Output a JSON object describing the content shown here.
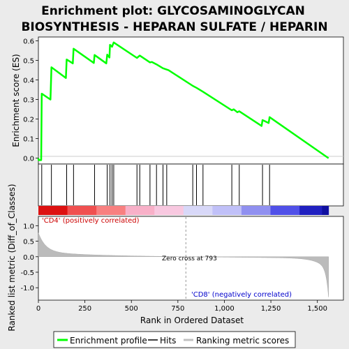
{
  "chart_data": {
    "type": "line",
    "title_line1": "Enrichment plot: GLYCOSAMINOGLYCAN",
    "title_line2": "BIOSYNTHESIS - HEPARAN SULFATE / HEPARIN",
    "es_panel": {
      "ylabel": "Enrichment score (ES)",
      "ylim": [
        -0.03,
        0.62
      ],
      "yticks": [
        "0.0",
        "0.1",
        "0.2",
        "0.3",
        "0.4",
        "0.5",
        "0.6"
      ],
      "ytick_values": [
        0.0,
        0.1,
        0.2,
        0.3,
        0.4,
        0.5,
        0.6
      ],
      "series_color": "#00ff00",
      "points": [
        [
          0,
          0.0
        ],
        [
          1,
          -0.01
        ],
        [
          15,
          -0.01
        ],
        [
          18,
          0.33
        ],
        [
          65,
          0.3
        ],
        [
          70,
          0.465
        ],
        [
          148,
          0.41
        ],
        [
          152,
          0.505
        ],
        [
          185,
          0.485
        ],
        [
          189,
          0.56
        ],
        [
          298,
          0.487
        ],
        [
          302,
          0.528
        ],
        [
          365,
          0.485
        ],
        [
          370,
          0.53
        ],
        [
          382,
          0.515
        ],
        [
          385,
          0.58
        ],
        [
          396,
          0.57
        ],
        [
          405,
          0.592
        ],
        [
          530,
          0.513
        ],
        [
          545,
          0.525
        ],
        [
          600,
          0.49
        ],
        [
          610,
          0.492
        ],
        [
          635,
          0.48
        ],
        [
          670,
          0.46
        ],
        [
          700,
          0.45
        ],
        [
          830,
          0.37
        ],
        [
          850,
          0.36
        ],
        [
          885,
          0.34
        ],
        [
          1040,
          0.245
        ],
        [
          1050,
          0.25
        ],
        [
          1070,
          0.235
        ],
        [
          1080,
          0.24
        ],
        [
          1200,
          0.165
        ],
        [
          1205,
          0.195
        ],
        [
          1238,
          0.18
        ],
        [
          1243,
          0.21
        ],
        [
          1560,
          0.0
        ]
      ]
    },
    "hits": [
      18,
      70,
      152,
      189,
      302,
      370,
      385,
      396,
      405,
      530,
      545,
      600,
      635,
      670,
      690,
      830,
      850,
      885,
      1040,
      1080,
      1205,
      1243
    ],
    "heatbar_colors": [
      "#dd1111",
      "#f05050",
      "#f88080",
      "#f8b0c8",
      "#f8c8e0",
      "#d8d8f8",
      "#c0c0f8",
      "#9090f0",
      "#5050e8",
      "#2020c0"
    ],
    "rank_panel": {
      "ylabel": "Ranked list metric (Diff_of_Classes)",
      "ylim": [
        -1.4,
        1.3
      ],
      "yticks": [
        "1.0",
        "0.5",
        "0.0",
        "-0.5",
        "-1.0"
      ],
      "ytick_values": [
        1.0,
        0.5,
        0.0,
        -0.5,
        -1.0
      ],
      "xlabel": "Rank in Ordered Dataset",
      "xticks": [
        "0",
        "250",
        "500",
        "750",
        "1,000",
        "1,250",
        "1,500"
      ],
      "xtick_values": [
        0,
        250,
        500,
        750,
        1000,
        1250,
        1500
      ],
      "xlim": [
        0,
        1640
      ],
      "n_genes": 1560,
      "zero_cross": 793,
      "zero_cross_label": "Zero cross at 793",
      "pos_label": "'CD4' (positively correlated)",
      "neg_label": "'CD8' (negatively correlated)",
      "pos_color": "#cc0000",
      "neg_color": "#0000cc"
    },
    "legend": [
      {
        "label": "Enrichment profile",
        "color": "#00ff00"
      },
      {
        "label": "Hits",
        "color": "#000000"
      },
      {
        "label": "Ranking metric scores",
        "color": "#c0c0c0"
      }
    ]
  }
}
